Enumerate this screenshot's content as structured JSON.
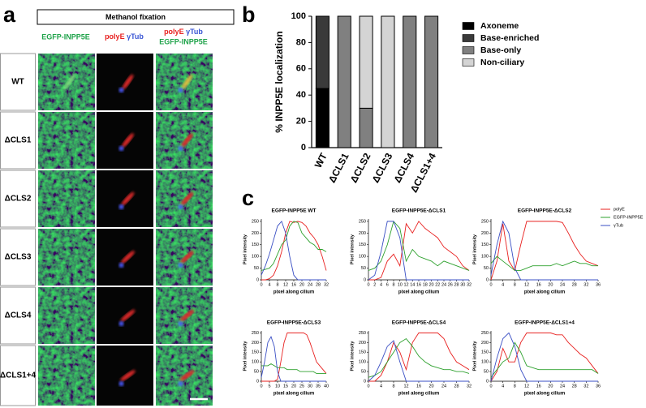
{
  "panel_labels": [
    "a",
    "b",
    "c"
  ],
  "panel_a": {
    "title": "Methanol fixation",
    "columns": [
      [
        "EGFP-INPP5E"
      ],
      [
        "polyE",
        "γTub"
      ],
      [
        "polyE",
        "γTub",
        "EGFP-INPP5E"
      ]
    ],
    "rows": [
      "WT",
      "ΔCLS1",
      "ΔCLS2",
      "ΔCLS3",
      "ΔCLS4",
      "ΔCLS1+4"
    ]
  },
  "chart_data": [
    {
      "type": "bar",
      "stacked": true,
      "ylabel": "% INPP5E localization",
      "categories": [
        "WT",
        "ΔCLS1",
        "ΔCLS2",
        "ΔCLS3",
        "ΔCLS4",
        "ΔCLS1+4"
      ],
      "series": [
        {
          "name": "Axoneme",
          "color": "#000000",
          "values": [
            45,
            0,
            0,
            0,
            0,
            0
          ]
        },
        {
          "name": "Base-enriched",
          "color": "#3a3a3a",
          "values": [
            55,
            0,
            0,
            0,
            0,
            0
          ]
        },
        {
          "name": "Base-only",
          "color": "#808080",
          "values": [
            0,
            100,
            30,
            0,
            100,
            100
          ]
        },
        {
          "name": "Non-ciliary",
          "color": "#d4d4d4",
          "values": [
            0,
            0,
            70,
            100,
            0,
            0
          ]
        }
      ],
      "ylim": [
        0,
        100
      ],
      "yticks": [
        0,
        20,
        40,
        60,
        80,
        100
      ]
    },
    {
      "type": "line",
      "title": "EGFP-INPP5E WT",
      "xlabel": "pixel along cilium",
      "ylabel": "Pixel intensity",
      "x": [
        0,
        2,
        4,
        6,
        8,
        10,
        12,
        14,
        16,
        18,
        20,
        22,
        24,
        26,
        28,
        30,
        32
      ],
      "series": [
        {
          "color": "#e8201f",
          "values": [
            0,
            0,
            5,
            20,
            60,
            120,
            200,
            250,
            245,
            250,
            245,
            230,
            200,
            180,
            150,
            100,
            40
          ]
        },
        {
          "color": "#2ca02c",
          "values": [
            40,
            45,
            50,
            70,
            110,
            150,
            170,
            230,
            250,
            245,
            200,
            180,
            160,
            150,
            130,
            130,
            120
          ]
        },
        {
          "color": "#3a4fc4",
          "values": [
            20,
            60,
            110,
            170,
            230,
            250,
            200,
            100,
            20,
            0,
            0,
            0,
            0,
            0,
            0,
            0,
            0
          ]
        }
      ],
      "xlim": [
        0,
        32
      ],
      "xticks": [
        0,
        4,
        8,
        12,
        16,
        20,
        24,
        28,
        32
      ],
      "ylim": [
        0,
        260
      ],
      "yticks": [
        0,
        50,
        100,
        150,
        200,
        250
      ]
    },
    {
      "type": "line",
      "title": "EGFP-INPP5E-ΔCLS1",
      "xlabel": "pixel along cilium",
      "ylabel": "Pixel intensity",
      "x": [
        0,
        2,
        4,
        6,
        8,
        10,
        12,
        14,
        16,
        18,
        20,
        22,
        24,
        26,
        28,
        30,
        32
      ],
      "series": [
        {
          "color": "#e8201f",
          "values": [
            0,
            0,
            10,
            80,
            110,
            60,
            240,
            200,
            250,
            220,
            200,
            180,
            140,
            120,
            100,
            60,
            40
          ]
        },
        {
          "color": "#2ca02c",
          "values": [
            40,
            50,
            80,
            150,
            250,
            220,
            80,
            130,
            100,
            90,
            80,
            60,
            80,
            70,
            60,
            50,
            40
          ]
        },
        {
          "color": "#3a4fc4",
          "values": [
            0,
            20,
            120,
            250,
            250,
            180,
            0,
            0,
            0,
            0,
            0,
            0,
            0,
            0,
            0,
            0,
            0
          ]
        }
      ],
      "xlim": [
        0,
        32
      ],
      "xticks": [
        0,
        2,
        4,
        6,
        8,
        10,
        12,
        14,
        16,
        18,
        20,
        22,
        24,
        26,
        28,
        30,
        32
      ],
      "ylim": [
        0,
        260
      ],
      "yticks": [
        0,
        50,
        100,
        150,
        200,
        250
      ]
    },
    {
      "type": "line",
      "title": "EGFP-INPP5E-ΔCLS2",
      "xlabel": "pixel along cilium",
      "ylabel": "Pixel intensity",
      "x": [
        0,
        2,
        4,
        6,
        8,
        10,
        12,
        14,
        16,
        18,
        20,
        22,
        24,
        26,
        28,
        30,
        32,
        34,
        36
      ],
      "series": [
        {
          "name": "polyE",
          "color": "#e8201f",
          "values": [
            0,
            80,
            240,
            80,
            40,
            150,
            250,
            250,
            250,
            250,
            250,
            250,
            245,
            200,
            150,
            110,
            80,
            70,
            60
          ]
        },
        {
          "name": "EGFP-INPP5E",
          "color": "#2ca02c",
          "values": [
            70,
            100,
            80,
            60,
            40,
            40,
            50,
            60,
            60,
            60,
            60,
            70,
            60,
            70,
            80,
            70,
            70,
            60,
            60
          ]
        },
        {
          "name": "γTub",
          "color": "#3a4fc4",
          "values": [
            20,
            150,
            250,
            200,
            50,
            0,
            0,
            0,
            0,
            0,
            0,
            0,
            0,
            0,
            0,
            0,
            0,
            0,
            0
          ]
        }
      ],
      "xlim": [
        0,
        36
      ],
      "xticks": [
        0,
        4,
        8,
        12,
        16,
        20,
        24,
        28,
        32,
        36
      ],
      "ylim": [
        0,
        260
      ],
      "yticks": [
        0,
        50,
        100,
        150,
        200,
        250
      ]
    },
    {
      "type": "line",
      "title": "EGFP-INPP5E-ΔCLS3",
      "xlabel": "pixel along cilium",
      "ylabel": "Pixel intensity",
      "x": [
        0,
        2,
        4,
        6,
        8,
        10,
        12,
        14,
        16,
        18,
        20,
        22,
        24,
        26,
        28,
        30,
        32,
        34,
        36,
        38,
        40
      ],
      "series": [
        {
          "color": "#e8201f",
          "values": [
            0,
            0,
            0,
            0,
            0,
            10,
            100,
            200,
            250,
            250,
            250,
            250,
            250,
            250,
            240,
            200,
            150,
            100,
            80,
            60,
            40
          ]
        },
        {
          "color": "#2ca02c",
          "values": [
            80,
            80,
            80,
            90,
            80,
            70,
            70,
            70,
            60,
            60,
            60,
            60,
            50,
            50,
            50,
            50,
            50,
            40,
            40,
            40,
            40
          ]
        },
        {
          "color": "#3a4fc4",
          "values": [
            20,
            100,
            200,
            230,
            180,
            50,
            0,
            0,
            0,
            0,
            0,
            0,
            0,
            0,
            0,
            0,
            0,
            0,
            0,
            0,
            0
          ]
        }
      ],
      "xlim": [
        0,
        40
      ],
      "xticks": [
        0,
        5,
        10,
        15,
        20,
        25,
        30,
        35,
        40
      ],
      "ylim": [
        0,
        260
      ],
      "yticks": [
        0,
        50,
        100,
        150,
        200,
        250
      ]
    },
    {
      "type": "line",
      "title": "EGFP-INPP5E-ΔCLS4",
      "xlabel": "pixel along cilium",
      "ylabel": "Pixel intensity",
      "x": [
        0,
        2,
        4,
        6,
        8,
        10,
        12,
        14,
        16,
        18,
        20,
        22,
        24,
        26,
        28,
        30,
        32
      ],
      "series": [
        {
          "color": "#e8201f",
          "values": [
            0,
            0,
            30,
            100,
            200,
            150,
            60,
            200,
            250,
            250,
            250,
            250,
            220,
            150,
            100,
            80,
            60
          ]
        },
        {
          "color": "#2ca02c",
          "values": [
            20,
            30,
            50,
            100,
            150,
            200,
            220,
            180,
            130,
            100,
            80,
            70,
            60,
            60,
            50,
            50,
            40
          ]
        },
        {
          "color": "#3a4fc4",
          "values": [
            0,
            30,
            100,
            180,
            210,
            100,
            0,
            0,
            0,
            0,
            0,
            0,
            0,
            0,
            0,
            0,
            0
          ]
        }
      ],
      "xlim": [
        0,
        32
      ],
      "xticks": [
        0,
        4,
        8,
        12,
        16,
        20,
        24,
        28,
        32
      ],
      "ylim": [
        0,
        260
      ],
      "yticks": [
        0,
        50,
        100,
        150,
        200,
        250
      ]
    },
    {
      "type": "line",
      "title": "EGFP-INPP5E-ΔCLS1+4",
      "xlabel": "pixel along cilium",
      "ylabel": "Pixel intensity",
      "x": [
        0,
        2,
        4,
        6,
        8,
        10,
        12,
        14,
        16,
        18,
        20,
        22,
        24,
        26,
        28,
        30,
        32,
        34,
        36
      ],
      "series": [
        {
          "color": "#e8201f",
          "values": [
            0,
            50,
            170,
            100,
            100,
            200,
            250,
            250,
            250,
            250,
            250,
            240,
            240,
            200,
            170,
            140,
            120,
            80,
            40
          ]
        },
        {
          "color": "#2ca02c",
          "values": [
            20,
            60,
            100,
            120,
            200,
            150,
            80,
            70,
            60,
            60,
            60,
            60,
            60,
            60,
            60,
            60,
            60,
            60,
            40
          ]
        },
        {
          "color": "#3a4fc4",
          "values": [
            0,
            120,
            220,
            250,
            180,
            60,
            0,
            0,
            0,
            0,
            0,
            0,
            0,
            0,
            0,
            0,
            0,
            0,
            0
          ]
        }
      ],
      "xlim": [
        0,
        36
      ],
      "xticks": [
        0,
        4,
        8,
        12,
        16,
        20,
        24,
        28,
        32,
        36
      ],
      "ylim": [
        0,
        260
      ],
      "yticks": [
        0,
        50,
        100,
        150,
        200,
        250
      ]
    }
  ]
}
